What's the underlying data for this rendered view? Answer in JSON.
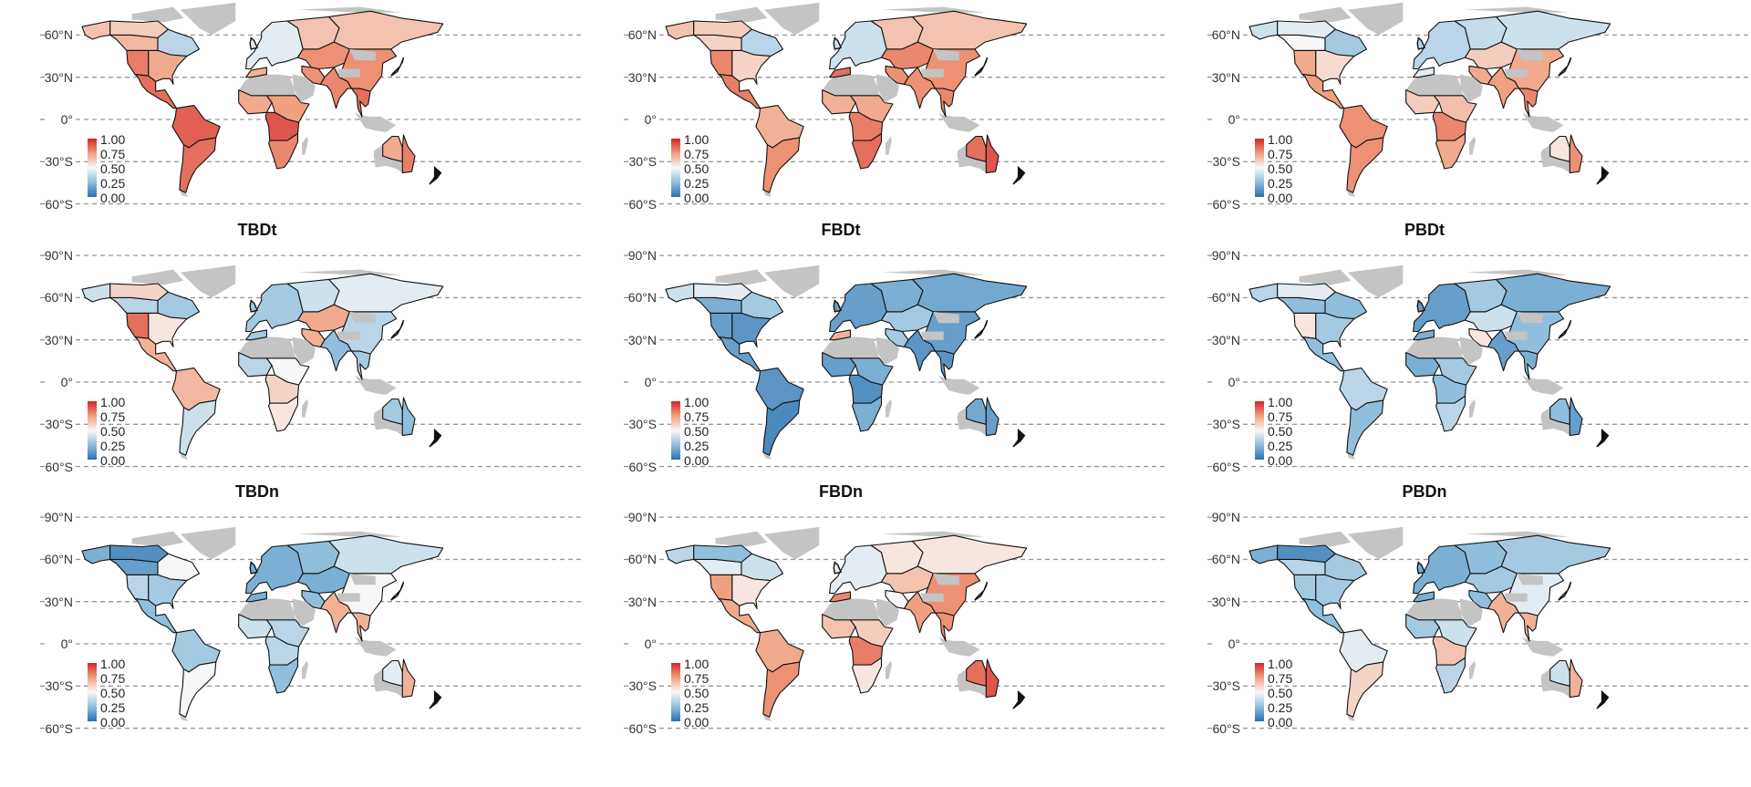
{
  "axis": {
    "lat_labels": [
      "90°N",
      "60°N",
      "30°N",
      "0°",
      "30°S",
      "60°S"
    ]
  },
  "legend": {
    "labels": [
      "1.00",
      "0.75",
      "0.50",
      "0.25",
      "0.00"
    ],
    "colors": {
      "low": "#2c6fb0",
      "mid_low": "#8fbfdc",
      "mid": "#f7f7f7",
      "mid_high": "#f0a07f",
      "high": "#d3252a"
    },
    "range": [
      0,
      1
    ]
  },
  "no_data_color": "#c4c4c4",
  "chart_data": [
    {
      "type": "choropleth",
      "title": "",
      "values": {
        "alaska": 0.65,
        "canada_w": 0.68,
        "canada_n": 0.62,
        "canada_e": 0.35,
        "usa_w": 0.82,
        "usa_e": 0.72,
        "mexico_ca": 0.85,
        "sa_north": 0.88,
        "sa_south": 0.85,
        "europe": 0.45,
        "russia_w": 0.65,
        "siberia": 0.65,
        "central_asia": 0.78,
        "west_asia": 0.78,
        "south_asia": 0.8,
        "east_asia": 0.78,
        "se_asia": 0.85,
        "maghreb": 0.7,
        "west_africa": 0.72,
        "sahel_east": 0.75,
        "central_africa": 0.9,
        "southern_africa": 0.8,
        "australia_int": 0.72,
        "australia_east": 0.82
      }
    },
    {
      "type": "choropleth",
      "title": "",
      "values": {
        "alaska": 0.65,
        "canada_w": 0.6,
        "canada_n": 0.62,
        "canada_e": 0.35,
        "usa_w": 0.8,
        "usa_e": 0.6,
        "mexico_ca": 0.82,
        "sa_north": 0.7,
        "sa_south": 0.78,
        "europe": 0.4,
        "russia_w": 0.65,
        "siberia": 0.65,
        "central_asia": 0.8,
        "west_asia": 0.78,
        "south_asia": 0.78,
        "east_asia": 0.78,
        "se_asia": 0.8,
        "maghreb": 0.85,
        "west_africa": 0.7,
        "sahel_east": 0.72,
        "central_africa": 0.82,
        "southern_africa": 0.85,
        "australia_int": 0.85,
        "australia_east": 0.9
      }
    },
    {
      "type": "choropleth",
      "title": "",
      "values": {
        "alaska": 0.4,
        "canada_w": 0.5,
        "canada_n": 0.45,
        "canada_e": 0.3,
        "usa_w": 0.72,
        "usa_e": 0.58,
        "mexico_ca": 0.75,
        "sa_north": 0.78,
        "sa_south": 0.78,
        "europe": 0.35,
        "russia_w": 0.38,
        "siberia": 0.4,
        "central_asia": 0.62,
        "west_asia": 0.72,
        "south_asia": 0.75,
        "east_asia": 0.72,
        "se_asia": 0.8,
        "maghreb": 0.45,
        "west_africa": 0.62,
        "sahel_east": 0.66,
        "central_africa": 0.8,
        "southern_africa": 0.72,
        "australia_int": 0.55,
        "australia_east": 0.78
      }
    },
    {
      "type": "choropleth",
      "title": "TBDt",
      "values": {
        "alaska": 0.4,
        "canada_w": 0.35,
        "canada_n": 0.6,
        "canada_e": 0.3,
        "usa_w": 0.85,
        "usa_e": 0.55,
        "mexico_ca": 0.7,
        "sa_north": 0.68,
        "sa_south": 0.4,
        "europe": 0.3,
        "russia_w": 0.4,
        "siberia": 0.45,
        "central_asia": 0.72,
        "west_asia": 0.7,
        "south_asia": 0.25,
        "east_asia": 0.35,
        "se_asia": 0.3,
        "maghreb": 0.3,
        "west_africa": 0.35,
        "sahel_east": 0.5,
        "central_africa": 0.6,
        "southern_africa": 0.55,
        "australia_int": 0.3,
        "australia_east": 0.25
      }
    },
    {
      "type": "choropleth",
      "title": "FBDt",
      "values": {
        "alaska": 0.4,
        "canada_w": 0.2,
        "canada_n": 0.45,
        "canada_e": 0.3,
        "usa_w": 0.15,
        "usa_e": 0.12,
        "mexico_ca": 0.15,
        "sa_north": 0.12,
        "sa_south": 0.08,
        "europe": 0.15,
        "russia_w": 0.2,
        "siberia": 0.18,
        "central_asia": 0.3,
        "west_asia": 0.3,
        "south_asia": 0.12,
        "east_asia": 0.15,
        "se_asia": 0.12,
        "maghreb": 0.7,
        "west_africa": 0.15,
        "sahel_east": 0.2,
        "central_africa": 0.1,
        "southern_africa": 0.2,
        "australia_int": 0.18,
        "australia_east": 0.15
      }
    },
    {
      "type": "choropleth",
      "title": "PBDt",
      "values": {
        "alaska": 0.35,
        "canada_w": 0.25,
        "canada_n": 0.45,
        "canada_e": 0.25,
        "usa_w": 0.55,
        "usa_e": 0.3,
        "mexico_ca": 0.25,
        "sa_north": 0.35,
        "sa_south": 0.25,
        "europe": 0.15,
        "russia_w": 0.3,
        "siberia": 0.2,
        "central_asia": 0.4,
        "west_asia": 0.55,
        "south_asia": 0.15,
        "east_asia": 0.25,
        "se_asia": 0.2,
        "maghreb": 0.2,
        "west_africa": 0.2,
        "sahel_east": 0.3,
        "central_africa": 0.25,
        "southern_africa": 0.35,
        "australia_int": 0.25,
        "australia_east": 0.15
      }
    },
    {
      "type": "choropleth",
      "title": "TBDn",
      "values": {
        "alaska": 0.2,
        "canada_w": 0.15,
        "canada_n": 0.1,
        "canada_e": 0.5,
        "usa_w": 0.35,
        "usa_e": 0.3,
        "mexico_ca": 0.25,
        "sa_north": 0.3,
        "sa_south": 0.5,
        "europe": 0.2,
        "russia_w": 0.25,
        "siberia": 0.4,
        "central_asia": 0.2,
        "west_asia": 0.25,
        "south_asia": 0.7,
        "east_asia": 0.5,
        "se_asia": 0.7,
        "maghreb": 0.2,
        "west_africa": 0.4,
        "sahel_east": 0.35,
        "central_africa": 0.35,
        "southern_africa": 0.25,
        "australia_int": 0.45,
        "australia_east": 0.7
      }
    },
    {
      "type": "choropleth",
      "title": "FBDn",
      "values": {
        "alaska": 0.35,
        "canada_w": 0.45,
        "canada_n": 0.25,
        "canada_e": 0.4,
        "usa_w": 0.75,
        "usa_e": 0.55,
        "mexico_ca": 0.72,
        "sa_north": 0.72,
        "sa_south": 0.78,
        "europe": 0.45,
        "russia_w": 0.55,
        "siberia": 0.55,
        "central_asia": 0.65,
        "west_asia": 0.5,
        "south_asia": 0.75,
        "east_asia": 0.78,
        "se_asia": 0.78,
        "maghreb": 0.8,
        "west_africa": 0.65,
        "sahel_east": 0.62,
        "central_africa": 0.82,
        "southern_africa": 0.55,
        "australia_int": 0.85,
        "australia_east": 0.9
      }
    },
    {
      "type": "choropleth",
      "title": "PBDn",
      "values": {
        "alaska": 0.2,
        "canada_w": 0.35,
        "canada_n": 0.1,
        "canada_e": 0.3,
        "usa_w": 0.3,
        "usa_e": 0.3,
        "mexico_ca": 0.25,
        "sa_north": 0.45,
        "sa_south": 0.6,
        "europe": 0.2,
        "russia_w": 0.25,
        "siberia": 0.3,
        "central_asia": 0.3,
        "west_asia": 0.25,
        "south_asia": 0.7,
        "east_asia": 0.45,
        "se_asia": 0.7,
        "maghreb": 0.2,
        "west_africa": 0.3,
        "sahel_east": 0.4,
        "central_africa": 0.65,
        "southern_africa": 0.35,
        "australia_int": 0.4,
        "australia_east": 0.7
      }
    }
  ]
}
